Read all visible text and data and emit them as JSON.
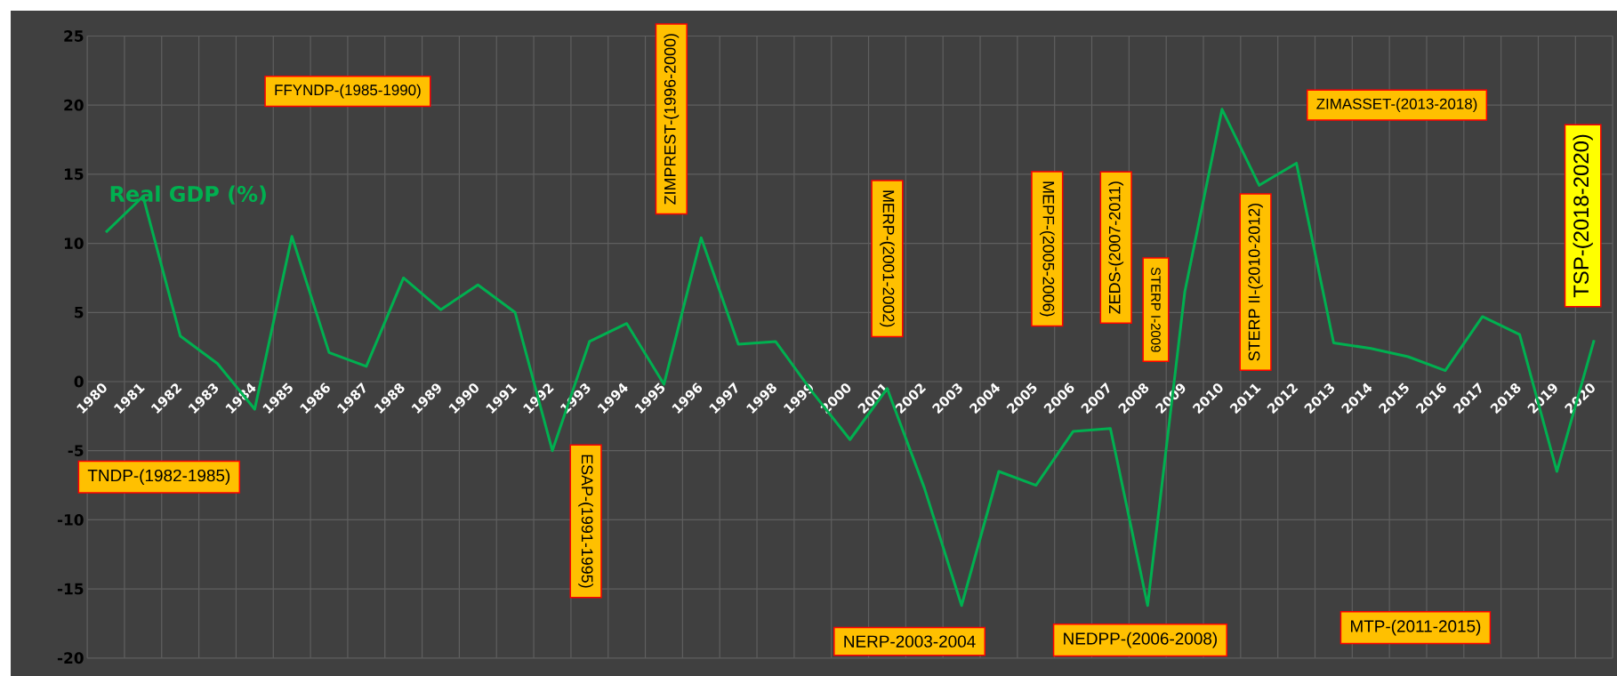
{
  "chart_data": {
    "type": "line",
    "categories": [
      "1980",
      "1981",
      "1982",
      "1983",
      "1984",
      "1985",
      "1986",
      "1987",
      "1988",
      "1989",
      "1990",
      "1991",
      "1992",
      "1993",
      "1994",
      "1995",
      "1996",
      "1997",
      "1998",
      "1999",
      "2000",
      "2001",
      "2002",
      "2003",
      "2004",
      "2005",
      "2006",
      "2007",
      "2008",
      "2009",
      "2010",
      "2011",
      "2012",
      "2013",
      "2014",
      "2015",
      "2016",
      "2017",
      "2018",
      "2019",
      "2020"
    ],
    "series": [
      {
        "name": "Real GDP (%)",
        "color": "#00b050",
        "values": [
          10.8,
          13.4,
          3.3,
          1.3,
          -2.0,
          10.5,
          2.1,
          1.1,
          7.5,
          5.2,
          7.0,
          5.0,
          -5.0,
          2.9,
          4.2,
          -0.2,
          10.4,
          2.7,
          2.9,
          -0.8,
          -4.2,
          -0.5,
          -7.7,
          -16.2,
          -6.5,
          -7.5,
          -3.6,
          -3.4,
          -16.2,
          6.5,
          19.7,
          14.2,
          15.8,
          2.8,
          2.4,
          1.8,
          0.8,
          4.7,
          3.4,
          -6.5,
          3.0
        ]
      }
    ],
    "ylim": [
      -20,
      25
    ],
    "yticks": [
      -20,
      -15,
      -10,
      -5,
      0,
      5,
      10,
      15,
      20,
      25
    ],
    "grid": true,
    "legend": false,
    "marker": "none",
    "line_style": "solid",
    "annotations": [
      "TNDP-(1982-1985)",
      "FFYNDP-(1985-1990)",
      "ESAP-(1991-1995)",
      "ZIMPREST-(1996-2000)",
      "MERP-(2001-2002)",
      "NERP-2003-2004",
      "MEPF-(2005-2006)",
      "NEDPP-(2006-2008)",
      "ZEDS-(2007-2011)",
      "STERP I-2009",
      "STERP II-(2010-2012)",
      "ZIMASSET-(2013-2018)",
      "MTP-(2011-2015)",
      "TSP-(2018-2020)"
    ]
  }
}
